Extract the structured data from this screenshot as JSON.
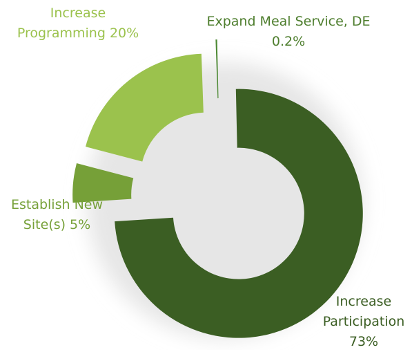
{
  "chart_data": {
    "type": "donut",
    "categories": [
      "Expand Meal Service, DE",
      "Increase Participation",
      "Establish New Site(s)",
      "Increase Programming"
    ],
    "values": [
      0.2,
      73,
      5,
      20
    ],
    "value_labels": [
      "0.2%",
      "73%",
      "5%",
      "20%"
    ],
    "colors": [
      "#4e8a35",
      "#3b5e23",
      "#76a038",
      "#9bc24d"
    ]
  }
}
